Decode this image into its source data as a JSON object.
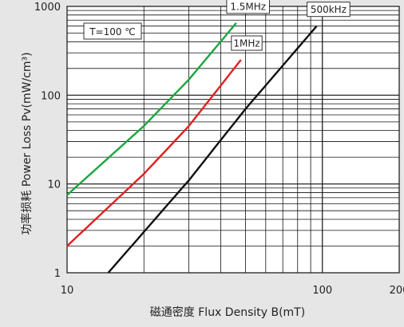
{
  "chart_data": {
    "type": "line",
    "title": "",
    "xlabel": "磁通密度 Flux Density B(mT)",
    "ylabel": "功率损耗 Power Loss Pv(mW/cm³)",
    "x_scale": "log",
    "y_scale": "log",
    "xlim": [
      10,
      200
    ],
    "ylim": [
      1,
      1000
    ],
    "grid": true,
    "x_ticks": [
      {
        "value": 10,
        "label": "10"
      },
      {
        "value": 100,
        "label": "100"
      },
      {
        "value": 200,
        "label": "200"
      }
    ],
    "y_ticks": [
      {
        "value": 1,
        "label": "1"
      },
      {
        "value": 10,
        "label": "10"
      },
      {
        "value": 100,
        "label": "100"
      },
      {
        "value": 1000,
        "label": "1000"
      }
    ],
    "annotation": "T=100 ℃",
    "series": [
      {
        "name": "1.5MHz",
        "color": "#1aa640",
        "points": [
          [
            10,
            7.5
          ],
          [
            20,
            45
          ],
          [
            30,
            150
          ],
          [
            46,
            650
          ]
        ]
      },
      {
        "name": "1MHz",
        "color": "#e02020",
        "points": [
          [
            10,
            2
          ],
          [
            20,
            13
          ],
          [
            30,
            45
          ],
          [
            48,
            250
          ]
        ]
      },
      {
        "name": "500kHz",
        "color": "#111111",
        "points": [
          [
            14.5,
            1
          ],
          [
            30,
            11
          ],
          [
            50,
            70
          ],
          [
            95,
            600
          ]
        ]
      }
    ]
  }
}
